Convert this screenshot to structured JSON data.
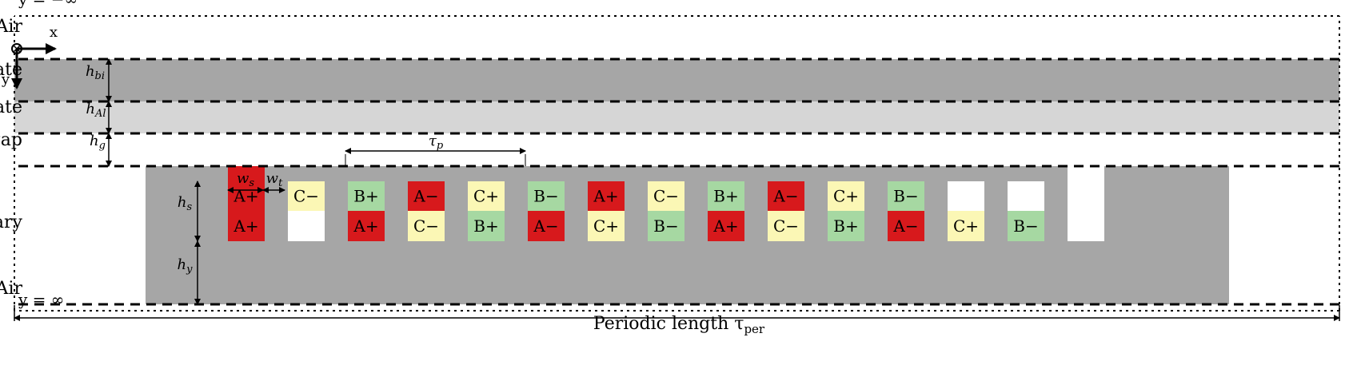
{
  "regions": [
    {
      "id": "I",
      "label": "Region I: Air"
    },
    {
      "id": "II",
      "label": "Region II: Primary"
    },
    {
      "id": "III",
      "label": "Region III: Airgap"
    },
    {
      "id": "IV",
      "label": "Region IV: Conductive secondary plate"
    },
    {
      "id": "V",
      "label": "Region V: Secondary back-iron plate"
    },
    {
      "id": "VI",
      "label": "Region VI: Air"
    }
  ],
  "boundaries": {
    "top_label": "y = −∞",
    "bottom_label": "y = ∞"
  },
  "axes": {
    "x": "x",
    "y": "y"
  },
  "dimensions": {
    "period": "Periodic length τ",
    "period_sub": "per",
    "pole_pitch": "τ",
    "pole_pitch_sub": "p",
    "slot_width": "w",
    "slot_width_sub": "s",
    "tooth_width": "w",
    "tooth_width_sub": "t",
    "slot_height": "h",
    "slot_height_sub": "s",
    "yoke_height": "h",
    "yoke_height_sub": "y",
    "airgap": "h",
    "airgap_sub": "g",
    "plate": "h",
    "plate_sub": "Al",
    "backiron": "h",
    "backiron_sub": "bi"
  },
  "colors": {
    "iron": "#a6a6a6",
    "plate": "#d6d6d6",
    "A": "#d7191c",
    "B": "#a6d8a2",
    "C": "#fbf7b5",
    "empty": "#ffffff"
  },
  "slots": [
    {
      "top": "A+",
      "bottom": "A+"
    },
    {
      "top": "C−",
      "bottom": ""
    },
    {
      "top": "B+",
      "bottom": "A+"
    },
    {
      "top": "A−",
      "bottom": "C−"
    },
    {
      "top": "C+",
      "bottom": "B+"
    },
    {
      "top": "B−",
      "bottom": "A−"
    },
    {
      "top": "A+",
      "bottom": "C+"
    },
    {
      "top": "C−",
      "bottom": "B−"
    },
    {
      "top": "B+",
      "bottom": "A+"
    },
    {
      "top": "A−",
      "bottom": "C−"
    },
    {
      "top": "C+",
      "bottom": "B+"
    },
    {
      "top": "B−",
      "bottom": "A−"
    },
    {
      "top": "",
      "bottom": "C+"
    },
    {
      "top": "",
      "bottom": "B−"
    },
    {
      "top": "",
      "bottom": ""
    }
  ]
}
